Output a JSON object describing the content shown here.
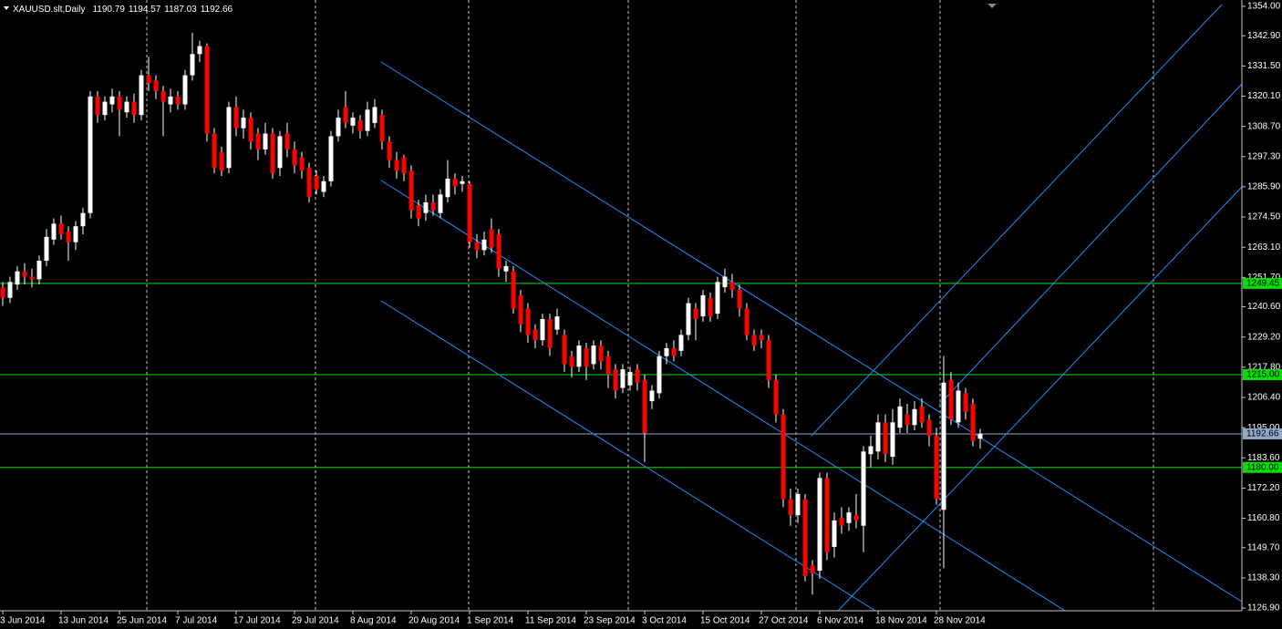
{
  "chart_data": {
    "type": "candlestick",
    "title": "XAUUSD.slt,Daily",
    "up_color": "#ffffff",
    "down_color": "#ff0000",
    "wick_color": "#ffffff",
    "ylim": [
      1125.9,
      1356.4
    ],
    "yticks": [
      {
        "value": 1354,
        "label": "1354.00"
      },
      {
        "value": 1342.9,
        "label": "1342.90"
      },
      {
        "value": 1331.5,
        "label": "1331.50"
      },
      {
        "value": 1320.1,
        "label": "1320.10"
      },
      {
        "value": 1308.7,
        "label": "1308.70"
      },
      {
        "value": 1297.3,
        "label": "1297.30"
      },
      {
        "value": 1285.9,
        "label": "1285.90"
      },
      {
        "value": 1274.5,
        "label": "1274.50"
      },
      {
        "value": 1263.1,
        "label": "1263.10"
      },
      {
        "value": 1251.7,
        "label": "1251.70"
      },
      {
        "value": 1240.6,
        "label": "1240.60"
      },
      {
        "value": 1229.2,
        "label": "1229.20"
      },
      {
        "value": 1217.8,
        "label": "1217.80"
      },
      {
        "value": 1206.4,
        "label": "1206.40"
      },
      {
        "value": 1195,
        "label": "1195.00"
      },
      {
        "value": 1183.6,
        "label": "1183.60"
      },
      {
        "value": 1172.2,
        "label": "1172.20"
      },
      {
        "value": 1160.8,
        "label": "1160.80"
      },
      {
        "value": 1149.7,
        "label": "1149.70"
      },
      {
        "value": 1138.3,
        "label": "1138.30"
      },
      {
        "value": 1126.9,
        "label": "1126.90"
      }
    ],
    "hlines": [
      {
        "value": 1249.45,
        "label": "1249.45",
        "color": "#00e000"
      },
      {
        "value": 1215,
        "label": "1215.00",
        "color": "#00e000"
      },
      {
        "value": 1192.66,
        "label": "1192.66",
        "color": "#8fa8c8"
      },
      {
        "value": 1180,
        "label": "1180.00",
        "color": "#00e000"
      }
    ],
    "categories": [
      "3 Jun 2014",
      null,
      null,
      null,
      null,
      null,
      null,
      null,
      "13 Jun 2014",
      null,
      null,
      null,
      null,
      null,
      null,
      null,
      "25 Jun 2014",
      null,
      null,
      null,
      null,
      null,
      null,
      null,
      "7 Jul 2014",
      null,
      null,
      null,
      null,
      null,
      null,
      null,
      "17 Jul 2014",
      null,
      null,
      null,
      null,
      null,
      null,
      null,
      "29 Jul 2014",
      null,
      null,
      null,
      null,
      null,
      null,
      null,
      "8 Aug 2014",
      null,
      null,
      null,
      null,
      null,
      null,
      null,
      "20 Aug 2014",
      null,
      null,
      null,
      null,
      null,
      null,
      null,
      "1 Sep 2014",
      null,
      null,
      null,
      null,
      null,
      null,
      null,
      "11 Sep 2014",
      null,
      null,
      null,
      null,
      null,
      null,
      null,
      "23 Sep 2014",
      null,
      null,
      null,
      null,
      null,
      null,
      null,
      "3 Oct 2014",
      null,
      null,
      null,
      null,
      null,
      null,
      null,
      "15 Oct 2014",
      null,
      null,
      null,
      null,
      null,
      null,
      null,
      "27 Oct 2014",
      null,
      null,
      null,
      null,
      null,
      null,
      null,
      "6 Nov 2014",
      null,
      null,
      null,
      null,
      null,
      null,
      null,
      "18 Nov 2014",
      null,
      null,
      null,
      null,
      null,
      null,
      null,
      "28 Nov 2014",
      null,
      null,
      null,
      null,
      null,
      null
    ],
    "open": [
      1248,
      1244,
      1249,
      1254,
      1252,
      1251,
      1258,
      1266,
      1272,
      1269,
      1265,
      1271,
      1276,
      1320,
      1313,
      1317,
      1320,
      1314,
      1318,
      1313,
      1328,
      1326,
      1322,
      1317,
      1320,
      1317,
      1328,
      1336,
      1339,
      1306,
      1299,
      1293,
      1316,
      1308,
      1312,
      1306,
      1300,
      1306,
      1293,
      1306,
      1300,
      1297,
      1293,
      1290,
      1284,
      1288,
      1305,
      1316,
      1309,
      1311,
      1307,
      1310,
      1313,
      1303,
      1296,
      1297,
      1292,
      1279,
      1276,
      1280,
      1276,
      1282,
      1289,
      1287,
      1287,
      1265,
      1262,
      1270,
      1268,
      1254,
      1254,
      1245,
      1240,
      1232,
      1228,
      1236,
      1232,
      1230,
      1222,
      1218,
      1225,
      1219,
      1226,
      1222,
      1217,
      1210,
      1211,
      1217,
      1213,
      1205,
      1208,
      1222,
      1225,
      1224,
      1230,
      1240,
      1237,
      1244,
      1238,
      1248,
      1250,
      1247,
      1240,
      1230,
      1230,
      1228,
      1213,
      1200,
      1168,
      1162,
      1168,
      1143,
      1141,
      1176,
      1150,
      1161,
      1159,
      1162,
      1158,
      1185,
      1186,
      1197,
      1184,
      1195,
      1200,
      1196,
      1203,
      1198,
      1192,
      1164,
      1213,
      1197,
      1208,
      1204,
      1190.79
    ],
    "high": [
      1250,
      1252,
      1256,
      1257,
      1255,
      1260,
      1270,
      1274,
      1275,
      1271,
      1273,
      1278,
      1322,
      1322,
      1320,
      1323,
      1322,
      1320,
      1321,
      1330,
      1335,
      1328,
      1324,
      1323,
      1322,
      1330,
      1344,
      1341,
      1340,
      1308,
      1301,
      1318,
      1320,
      1315,
      1314,
      1308,
      1310,
      1308,
      1307,
      1310,
      1303,
      1299,
      1295,
      1292,
      1290,
      1307,
      1315,
      1322,
      1314,
      1313,
      1318,
      1319,
      1315,
      1305,
      1299,
      1298,
      1294,
      1281,
      1283,
      1283,
      1285,
      1296,
      1291,
      1290,
      1288,
      1268,
      1269,
      1274,
      1270,
      1258,
      1256,
      1247,
      1242,
      1234,
      1238,
      1238,
      1240,
      1232,
      1224,
      1228,
      1227,
      1228,
      1228,
      1224,
      1219,
      1219,
      1218,
      1219,
      1215,
      1211,
      1224,
      1227,
      1228,
      1232,
      1244,
      1242,
      1247,
      1246,
      1252,
      1255,
      1253,
      1249,
      1242,
      1232,
      1232,
      1230,
      1215,
      1202,
      1172,
      1172,
      1170,
      1145,
      1178,
      1178,
      1163,
      1165,
      1165,
      1170,
      1188,
      1192,
      1200,
      1200,
      1202,
      1206,
      1204,
      1205,
      1206,
      1200,
      1195,
      1222,
      1216,
      1212,
      1210,
      1206,
      1194.57
    ],
    "low": [
      1241,
      1242,
      1247,
      1249,
      1248,
      1249,
      1256,
      1264,
      1266,
      1258,
      1262,
      1268,
      1274,
      1310,
      1311,
      1314,
      1305,
      1312,
      1310,
      1311,
      1322,
      1319,
      1305,
      1314,
      1315,
      1315,
      1326,
      1333,
      1303,
      1291,
      1290,
      1291,
      1305,
      1304,
      1300,
      1296,
      1298,
      1289,
      1290,
      1297,
      1291,
      1289,
      1280,
      1283,
      1282,
      1286,
      1303,
      1308,
      1306,
      1304,
      1305,
      1308,
      1300,
      1293,
      1289,
      1288,
      1274,
      1271,
      1273,
      1275,
      1274,
      1280,
      1283,
      1284,
      1263,
      1259,
      1260,
      1261,
      1252,
      1250,
      1238,
      1231,
      1227,
      1225,
      1226,
      1222,
      1230,
      1216,
      1214,
      1216,
      1213,
      1217,
      1217,
      1210,
      1206,
      1208,
      1209,
      1209,
      1182,
      1202,
      1206,
      1219,
      1220,
      1222,
      1228,
      1228,
      1235,
      1235,
      1236,
      1246,
      1244,
      1237,
      1228,
      1224,
      1225,
      1210,
      1197,
      1165,
      1158,
      1159,
      1137,
      1132,
      1138,
      1145,
      1146,
      1155,
      1156,
      1157,
      1148,
      1180,
      1183,
      1182,
      1181,
      1193,
      1193,
      1194,
      1195,
      1188,
      1166,
      1142,
      1196,
      1195,
      1198,
      1188,
      1187.03
    ],
    "close": [
      1244,
      1250,
      1254,
      1252,
      1251,
      1258,
      1267,
      1272,
      1268,
      1265,
      1271,
      1276,
      1320,
      1313,
      1318,
      1320,
      1315,
      1318,
      1313,
      1328,
      1325,
      1322,
      1318,
      1320,
      1317,
      1328,
      1336,
      1339,
      1306,
      1293,
      1292,
      1316,
      1308,
      1312,
      1303,
      1300,
      1306,
      1291,
      1305,
      1300,
      1294,
      1292,
      1282,
      1285,
      1288,
      1305,
      1312,
      1310,
      1312,
      1307,
      1315,
      1316,
      1303,
      1296,
      1292,
      1291,
      1277,
      1274,
      1280,
      1277,
      1283,
      1289,
      1286,
      1288,
      1265,
      1262,
      1266,
      1263,
      1255,
      1256,
      1240,
      1234,
      1230,
      1228,
      1236,
      1225,
      1237,
      1219,
      1218,
      1226,
      1218,
      1226,
      1220,
      1215,
      1209,
      1217,
      1216,
      1212,
      1193,
      1209,
      1222,
      1225,
      1222,
      1230,
      1242,
      1236,
      1245,
      1237,
      1250,
      1252,
      1247,
      1240,
      1230,
      1226,
      1228,
      1213,
      1200,
      1168,
      1162,
      1170,
      1139,
      1140,
      1176,
      1148,
      1160,
      1158,
      1163,
      1160,
      1186,
      1188,
      1197,
      1185,
      1197,
      1203,
      1196,
      1202,
      1197,
      1192,
      1168,
      1212,
      1198,
      1209,
      1201,
      1190,
      1192.66
    ]
  }
}
